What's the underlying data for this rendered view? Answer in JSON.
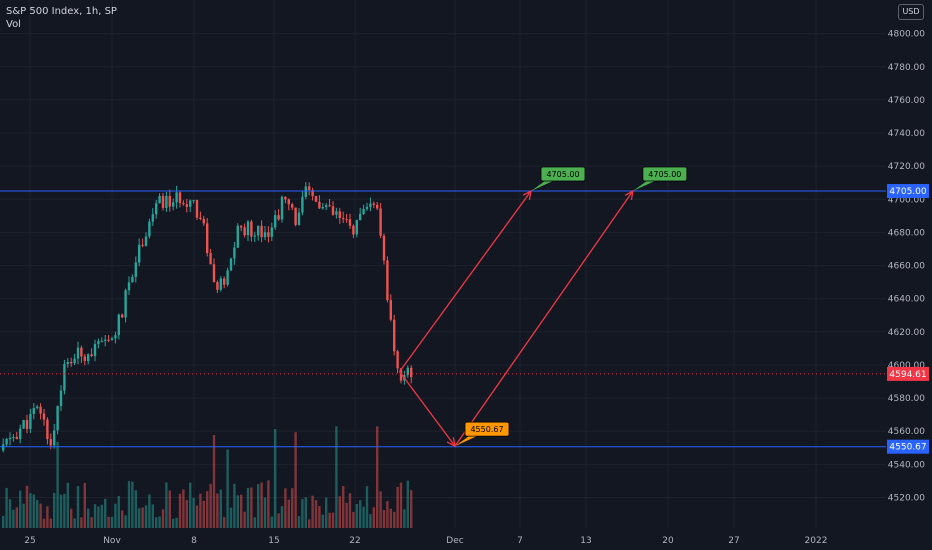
{
  "header": {
    "title": "S&P 500 Index, 1h, SP",
    "volume_label": "Vol",
    "currency": "USD"
  },
  "colors": {
    "background": "#131722",
    "up_candle": "#26a69a",
    "down_candle": "#ef5350",
    "hline": "#2962ff",
    "projection": "#f23645",
    "target_label": "#4caf50",
    "low_label": "#ff9800",
    "last_price": "#f23645",
    "grid": "#1e222d",
    "axis_text": "#b2b5be"
  },
  "chart_data": {
    "type": "candlestick",
    "y_axis": {
      "ticks": [
        4520,
        4540,
        4560,
        4580,
        4600,
        4620,
        4640,
        4660,
        4680,
        4700,
        4720,
        4740,
        4760,
        4780,
        4800
      ],
      "tick_labels": [
        "4520.00",
        "4540.00",
        "4560.00",
        "4580.00",
        "4600.00",
        "4620.00",
        "4640.00",
        "4660.00",
        "4680.00",
        "4700.00",
        "4720.00",
        "4740.00",
        "4760.00",
        "4780.00",
        "4800.00"
      ]
    },
    "x_axis": {
      "tick_labels": [
        "25",
        "Nov",
        "8",
        "15",
        "22",
        "Dec",
        "7",
        "13",
        "20",
        "27",
        "2022"
      ],
      "tick_dates": [
        "2021-10-25",
        "2021-11-01",
        "2021-11-08",
        "2021-11-15",
        "2021-11-22",
        "2021-12-01",
        "2021-12-07",
        "2021-12-13",
        "2021-12-20",
        "2021-12-27",
        "2022-01-03"
      ]
    },
    "candles_approx": [
      {
        "date": "2021-10-21",
        "close": 4549
      },
      {
        "date": "2021-10-22",
        "close": 4545
      },
      {
        "date": "2021-10-25",
        "close": 4566
      },
      {
        "date": "2021-10-26",
        "close": 4574
      },
      {
        "date": "2021-10-27",
        "close": 4551
      },
      {
        "date": "2021-10-28",
        "close": 4596
      },
      {
        "date": "2021-10-29",
        "close": 4605
      },
      {
        "date": "2021-11-01",
        "close": 4613
      },
      {
        "date": "2021-11-02",
        "close": 4630
      },
      {
        "date": "2021-11-03",
        "close": 4660
      },
      {
        "date": "2021-11-04",
        "close": 4680
      },
      {
        "date": "2021-11-05",
        "close": 4697
      },
      {
        "date": "2021-11-08",
        "close": 4701
      },
      {
        "date": "2021-11-09",
        "close": 4685
      },
      {
        "date": "2021-11-10",
        "close": 4646
      },
      {
        "date": "2021-11-11",
        "close": 4649
      },
      {
        "date": "2021-11-12",
        "close": 4682
      },
      {
        "date": "2021-11-15",
        "close": 4682
      },
      {
        "date": "2021-11-16",
        "close": 4700
      },
      {
        "date": "2021-11-17",
        "close": 4688
      },
      {
        "date": "2021-11-18",
        "close": 4704
      },
      {
        "date": "2021-11-19",
        "close": 4697
      },
      {
        "date": "2021-11-22",
        "close": 4682
      },
      {
        "date": "2021-11-23",
        "close": 4690
      },
      {
        "date": "2021-11-24",
        "close": 4701
      },
      {
        "date": "2021-11-26",
        "close": 4594.61
      }
    ],
    "horizontal_levels": [
      {
        "value": 4705.0,
        "label": "4705.00"
      },
      {
        "value": 4550.67,
        "label": "4550.67"
      }
    ],
    "last_price": {
      "value": 4594.61,
      "label": "4594.61"
    },
    "projections": [
      {
        "from": {
          "date": "2021-11-26",
          "value": 4596
        },
        "to": {
          "date": "2021-12-01",
          "value": 4551
        }
      },
      {
        "from": {
          "date": "2021-11-26",
          "value": 4596
        },
        "to": {
          "date": "2021-12-08",
          "value": 4705
        }
      },
      {
        "from": {
          "date": "2021-12-01",
          "value": 4551
        },
        "to": {
          "date": "2021-12-17",
          "value": 4705
        }
      }
    ],
    "callouts": [
      {
        "label": "4705.00",
        "kind": "target"
      },
      {
        "label": "4705.00",
        "kind": "target"
      },
      {
        "label": "4550.67",
        "kind": "low"
      }
    ],
    "grid": true
  }
}
